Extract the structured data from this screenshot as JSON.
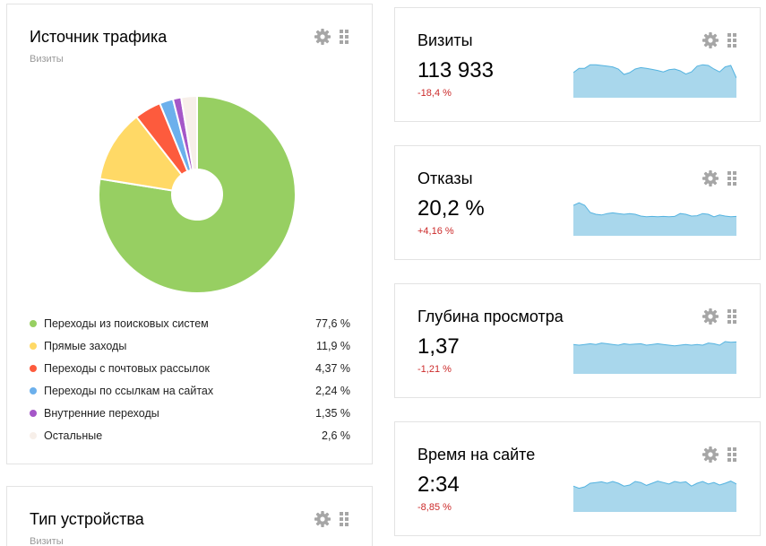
{
  "traffic_source": {
    "title": "Источник трафика",
    "subtitle": "Визиты",
    "icons": {
      "settings": "gear-icon",
      "drag": "drag-handle-icon"
    },
    "legend": [
      {
        "label": "Переходы из поисковых систем",
        "value": "77,6 %",
        "color": "#97cf62"
      },
      {
        "label": "Прямые заходы",
        "value": "11,9 %",
        "color": "#ffd966"
      },
      {
        "label": "Переходы с почтовых рассылок",
        "value": "4,37 %",
        "color": "#fd5b3d"
      },
      {
        "label": "Переходы по ссылкам на сайтах",
        "value": "2,24 %",
        "color": "#6cb0ec"
      },
      {
        "label": "Внутренние переходы",
        "value": "1,35 %",
        "color": "#a557c8"
      },
      {
        "label": "Остальные",
        "value": "2,6 %",
        "color": "#f7efe9"
      }
    ]
  },
  "chart_data": {
    "type": "pie",
    "title": "",
    "categories": [
      "Переходы из поисковых систем",
      "Прямые заходы",
      "Переходы с почтовых рассылок",
      "Переходы по ссылкам на сайтах",
      "Внутренние переходы",
      "Остальные"
    ],
    "values": [
      77.6,
      11.9,
      4.37,
      2.24,
      1.35,
      2.6
    ],
    "colors": [
      "#97cf62",
      "#ffd966",
      "#fd5b3d",
      "#6cb0ec",
      "#a557c8",
      "#f7efe9"
    ],
    "donut": true,
    "legend": "bottom"
  },
  "metrics": [
    {
      "title": "Визиты",
      "value": "113 933",
      "delta": "-18,4 %",
      "spark": [
        70,
        82,
        82,
        92,
        92,
        90,
        88,
        86,
        80,
        65,
        70,
        80,
        84,
        82,
        79,
        76,
        72,
        78,
        80,
        75,
        66,
        72,
        88,
        92,
        90,
        80,
        72,
        86,
        90,
        55
      ]
    },
    {
      "title": "Отказы",
      "value": "20,2 %",
      "delta": "+4,16 %",
      "spark": [
        85,
        92,
        85,
        65,
        60,
        58,
        62,
        64,
        62,
        60,
        62,
        60,
        55,
        53,
        54,
        53,
        54,
        53,
        54,
        62,
        60,
        55,
        56,
        62,
        60,
        53,
        58,
        55,
        53,
        54
      ]
    },
    {
      "title": "Глубина просмотра",
      "value": "1,37",
      "delta": "-1,21 %",
      "spark": [
        82,
        80,
        82,
        84,
        82,
        86,
        84,
        82,
        80,
        84,
        82,
        83,
        84,
        80,
        82,
        84,
        82,
        80,
        78,
        80,
        82,
        80,
        82,
        80,
        86,
        84,
        80,
        90,
        88,
        89
      ]
    },
    {
      "title": "Время на сайте",
      "value": "2:34",
      "delta": "-8,85 %",
      "spark": [
        72,
        66,
        70,
        80,
        82,
        84,
        80,
        85,
        80,
        72,
        75,
        85,
        82,
        74,
        80,
        86,
        82,
        78,
        85,
        82,
        84,
        72,
        80,
        85,
        78,
        82,
        75,
        80,
        86,
        78
      ]
    }
  ],
  "device_type": {
    "title": "Тип устройства",
    "subtitle": "Визиты"
  },
  "colors": {
    "spark_fill": "#a9d7ec",
    "spark_line": "#54b3e0",
    "negative": "#cc2b2b",
    "border": "#e3e3e3"
  }
}
